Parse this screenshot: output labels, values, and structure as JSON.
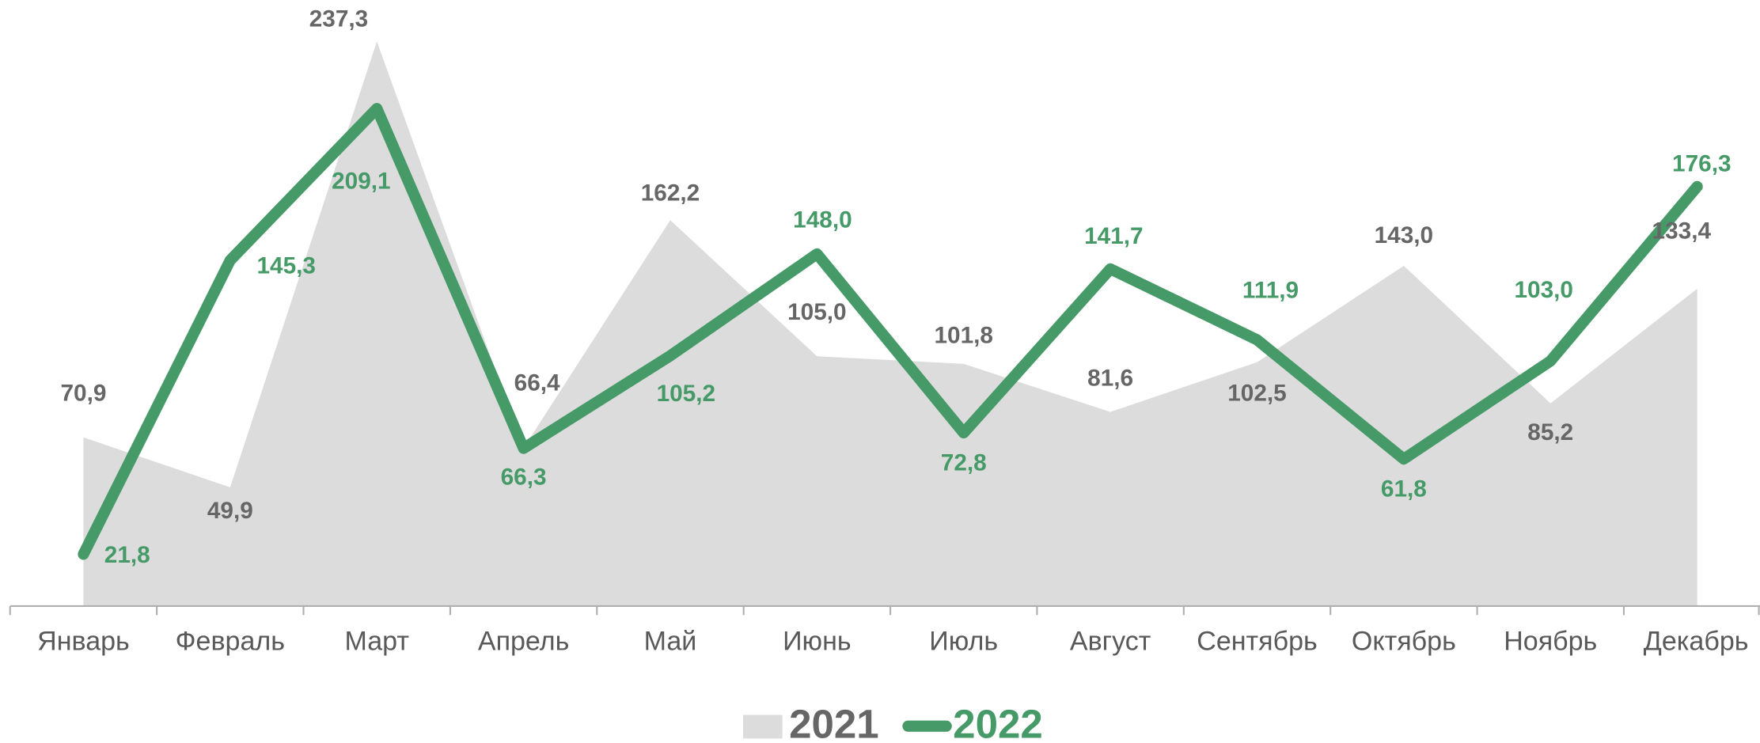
{
  "chart_data": {
    "type": "area-line",
    "categories": [
      "Январь",
      "Февраль",
      "Март",
      "Апрель",
      "Май",
      "Июнь",
      "Июль",
      "Август",
      "Сентябрь",
      "Октябрь",
      "Ноябрь",
      "Декабрь"
    ],
    "series": [
      {
        "name": "2021",
        "type": "area",
        "color": "#dcdcdc",
        "label_color": "#666666",
        "values": [
          70.9,
          49.9,
          237.3,
          66.4,
          162.2,
          105.0,
          101.8,
          81.6,
          102.5,
          143.0,
          85.2,
          133.4
        ],
        "value_labels": [
          "70,9",
          "49,9",
          "237,3",
          "66,4",
          "162,2",
          "105,0",
          "101,8",
          "81,6",
          "102,5",
          "143,0",
          "85,2",
          "133,4"
        ]
      },
      {
        "name": "2022",
        "type": "line",
        "color": "#459a67",
        "label_color": "#459a67",
        "values": [
          21.8,
          145.3,
          209.1,
          66.3,
          105.2,
          148.0,
          72.8,
          141.7,
          111.9,
          61.8,
          103.0,
          176.3
        ],
        "value_labels": [
          "21,8",
          "145,3",
          "209,1",
          "66,3",
          "105,2",
          "148,0",
          "72,8",
          "141,7",
          "111,9",
          "61,8",
          "103,0",
          "176,3"
        ]
      }
    ],
    "legend": "bottom"
  }
}
